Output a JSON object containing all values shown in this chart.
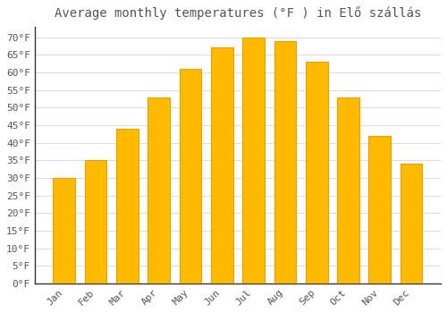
{
  "title": "Average monthly temperatures (°F ) in Elő szállás",
  "months": [
    "Jan",
    "Feb",
    "Mar",
    "Apr",
    "May",
    "Jun",
    "Jul",
    "Aug",
    "Sep",
    "Oct",
    "Nov",
    "Dec"
  ],
  "values": [
    30,
    35,
    44,
    53,
    61,
    67,
    70,
    69,
    63,
    53,
    42,
    34
  ],
  "bar_color": "#FFBB00",
  "bar_edge_color": "#E8A000",
  "background_color": "#FFFFFF",
  "grid_color": "#DDDDDD",
  "text_color": "#555555",
  "ylim": [
    0,
    73
  ],
  "yticks": [
    0,
    5,
    10,
    15,
    20,
    25,
    30,
    35,
    40,
    45,
    50,
    55,
    60,
    65,
    70
  ],
  "ylabel_suffix": "°F",
  "title_fontsize": 10,
  "tick_fontsize": 8
}
